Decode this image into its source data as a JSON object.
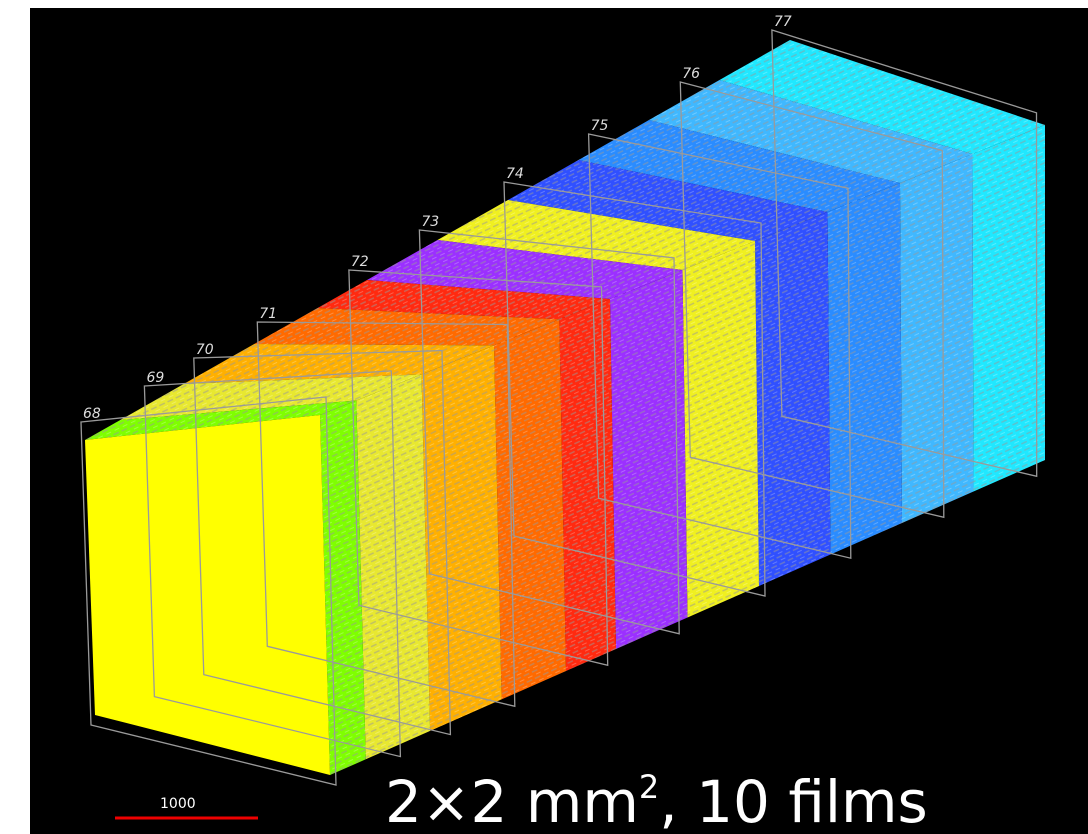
{
  "film_labels": [
    "68",
    "69",
    "70",
    "71",
    "72",
    "73",
    "74",
    "75",
    "76",
    "77"
  ],
  "scale_bar": {
    "label": "1000"
  },
  "caption": {
    "main": "2×2 mm",
    "superscript": "2",
    "rest": ", 10 films"
  }
}
